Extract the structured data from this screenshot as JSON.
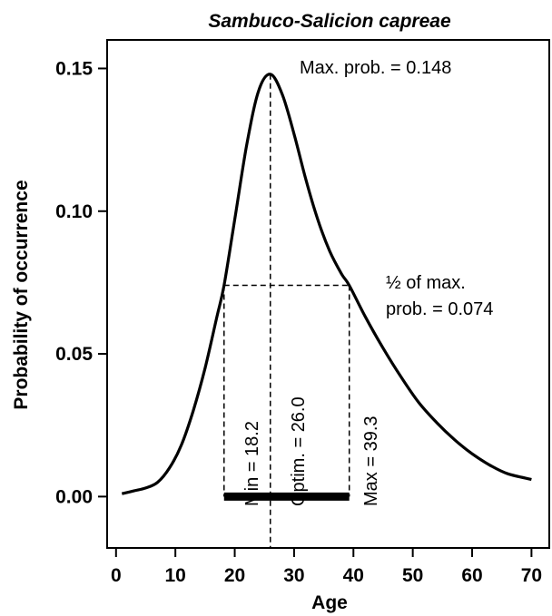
{
  "chart_data": {
    "type": "line",
    "title": "Sambuco-Salicion capreae",
    "xlabel": "Age",
    "ylabel": "Probability of occurrence",
    "xlim": [
      -1.5,
      73
    ],
    "ylim": [
      -0.018,
      0.16
    ],
    "x_ticks": [
      0,
      10,
      20,
      30,
      40,
      50,
      60,
      70
    ],
    "x_tick_labels": [
      "0",
      "10",
      "20",
      "30",
      "40",
      "50",
      "60",
      "70"
    ],
    "y_ticks": [
      0.0,
      0.05,
      0.1,
      0.15
    ],
    "y_tick_labels": [
      "0.00",
      "0.05",
      "0.10",
      "0.15"
    ],
    "grid": false,
    "series": [
      {
        "x": [
          1,
          3,
          5,
          7,
          9,
          11,
          13,
          15,
          17,
          18.2,
          20,
          22,
          24,
          26,
          28,
          30,
          32,
          34,
          36,
          38,
          39.3,
          42,
          45,
          48,
          51,
          54,
          57,
          60,
          63,
          66,
          70
        ],
        "values": [
          0.001,
          0.002,
          0.003,
          0.005,
          0.01,
          0.018,
          0.03,
          0.045,
          0.063,
          0.074,
          0.097,
          0.123,
          0.142,
          0.148,
          0.141,
          0.127,
          0.111,
          0.097,
          0.086,
          0.078,
          0.074,
          0.063,
          0.052,
          0.042,
          0.033,
          0.026,
          0.02,
          0.015,
          0.011,
          0.008,
          0.006
        ]
      }
    ],
    "max_prob": 0.148,
    "half_max_prob": 0.074,
    "optimum": 26.0,
    "range_min": 18.2,
    "range_max": 39.3,
    "annotations": {
      "max_label": "Max. prob. = 0.148",
      "half_label_line1": "½ of max.",
      "half_label_line2": "prob. = 0.074",
      "min_label": "Min = 18.2",
      "optim_label": "Optim. = 26.0",
      "max_age_label": "Max = 39.3"
    }
  }
}
